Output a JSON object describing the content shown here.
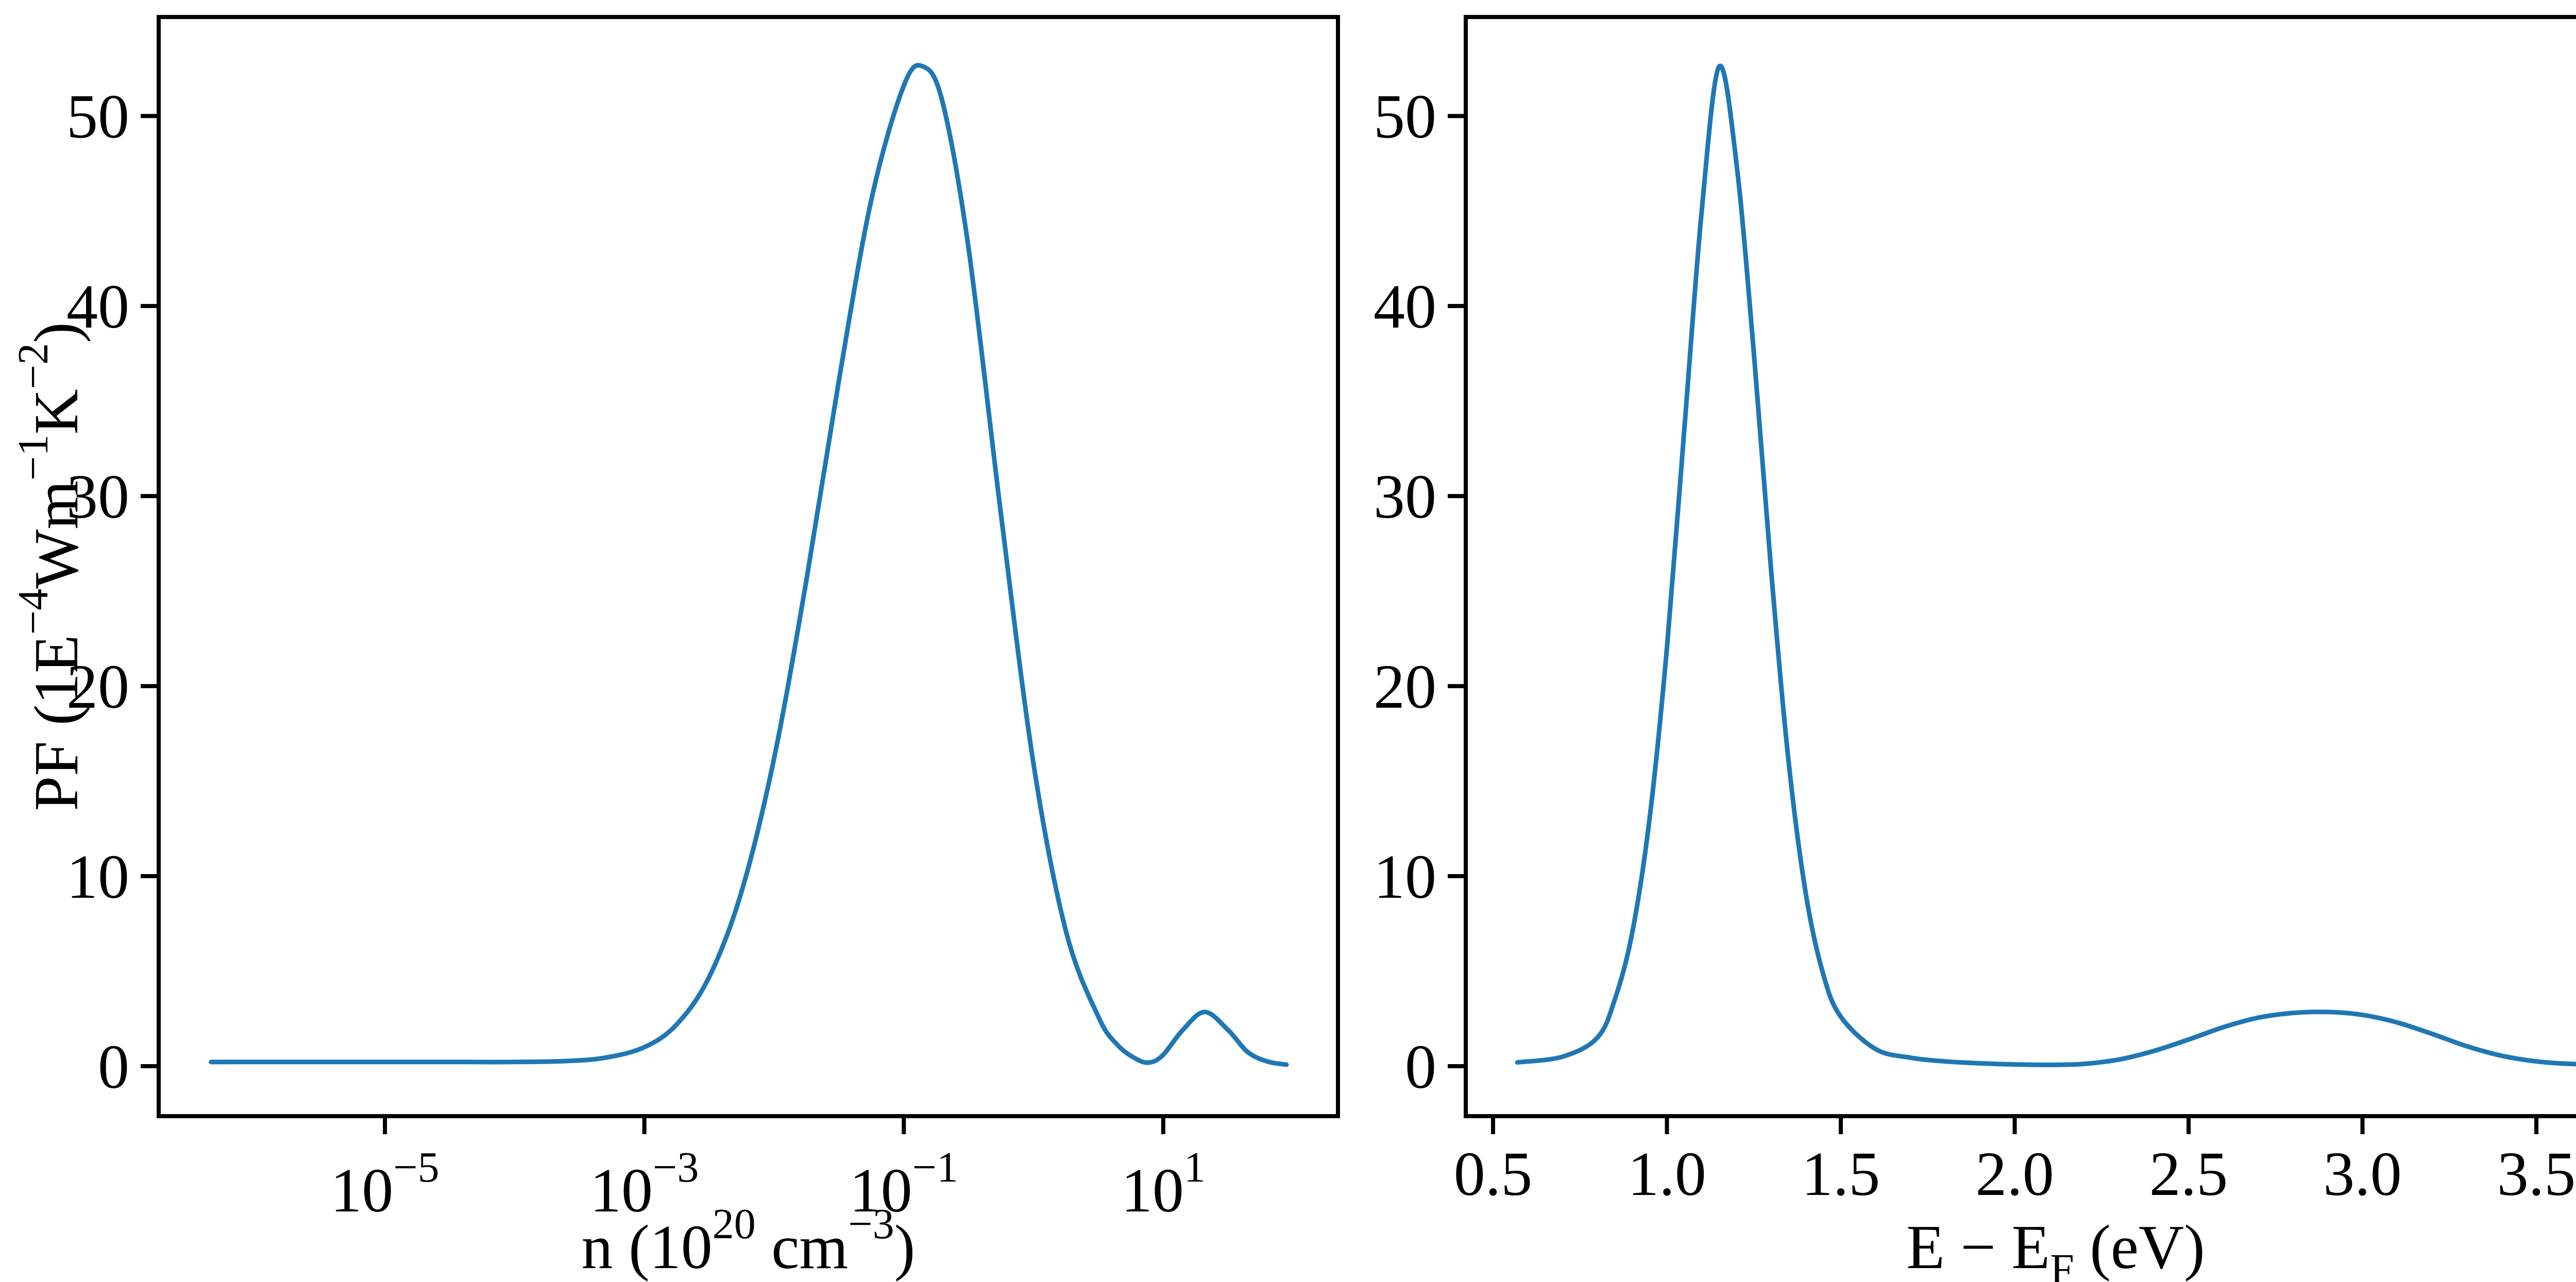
{
  "figure": {
    "background": "#ffffff",
    "axis_color": "#000000",
    "line_color": "#1f77b4"
  },
  "chart_data": [
    {
      "id": "left",
      "type": "line",
      "xscale": "log10",
      "legend": null,
      "grid": false,
      "xlabel_tokens": [
        {
          "t": "n (10"
        },
        {
          "sup": "20"
        },
        {
          "t": " cm"
        },
        {
          "sup": "−3"
        },
        {
          "t": ")"
        }
      ],
      "ylabel_tokens": [
        {
          "t": "PF (1E"
        },
        {
          "sup": "−4"
        },
        {
          "t": "Wm"
        },
        {
          "sup": "−1"
        },
        {
          "t": "K"
        },
        {
          "sup": "−2"
        },
        {
          "t": ")"
        }
      ],
      "xlim_log10": [
        -6.744,
        2.347
      ],
      "ylim": [
        -2.63,
        55.21
      ],
      "xticks": [
        {
          "log10": -5,
          "base": "10",
          "exp": "−5"
        },
        {
          "log10": -3,
          "base": "10",
          "exp": "−3"
        },
        {
          "log10": -1,
          "base": "10",
          "exp": "−1"
        },
        {
          "log10": 1,
          "base": "10",
          "exp": "1"
        }
      ],
      "yticks": [
        {
          "v": 0,
          "label": "0"
        },
        {
          "v": 10,
          "label": "10"
        },
        {
          "v": 20,
          "label": "20"
        },
        {
          "v": 30,
          "label": "30"
        },
        {
          "v": 40,
          "label": "40"
        },
        {
          "v": 50,
          "label": "50"
        }
      ],
      "x_log10": [
        -6.34,
        -6.0,
        -5.6,
        -5.2,
        -4.8,
        -4.4,
        -4.0,
        -3.6,
        -3.3,
        -3.0,
        -2.75,
        -2.5,
        -2.25,
        -2.0,
        -1.75,
        -1.5,
        -1.25,
        -1.0,
        -0.85,
        -0.7,
        -0.5,
        -0.25,
        0.0,
        0.25,
        0.5,
        0.65,
        0.8,
        0.9,
        1.0,
        1.15,
        1.32,
        1.5,
        1.65,
        1.8,
        1.95
      ],
      "y": [
        0.22,
        0.22,
        0.22,
        0.22,
        0.22,
        0.22,
        0.22,
        0.27,
        0.45,
        1.0,
        2.2,
        4.7,
        9.2,
        16.2,
        25.6,
        36.1,
        45.6,
        51.6,
        52.6,
        50.7,
        43.0,
        29.0,
        15.9,
        7.1,
        2.6,
        1.1,
        0.35,
        0.2,
        0.6,
        1.9,
        2.85,
        1.9,
        0.75,
        0.25,
        0.08
      ],
      "peak": {
        "x": 0.14,
        "y": 52.6
      },
      "secondary_peak": {
        "x": 21,
        "y": 2.85
      }
    },
    {
      "id": "right",
      "type": "line",
      "xscale": "linear",
      "legend": null,
      "grid": false,
      "xlabel_tokens": [
        {
          "t": "E − E"
        },
        {
          "sub": "F"
        },
        {
          "t": " (eV)"
        }
      ],
      "ylabel_tokens": [],
      "xlim": [
        0.4215,
        3.814
      ],
      "ylim": [
        -2.63,
        55.21
      ],
      "xticks": [
        {
          "v": 0.5,
          "label": "0.5"
        },
        {
          "v": 1.0,
          "label": "1.0"
        },
        {
          "v": 1.5,
          "label": "1.5"
        },
        {
          "v": 2.0,
          "label": "2.0"
        },
        {
          "v": 2.5,
          "label": "2.5"
        },
        {
          "v": 3.0,
          "label": "3.0"
        },
        {
          "v": 3.5,
          "label": "3.5"
        }
      ],
      "yticks": [
        {
          "v": 0,
          "label": "0"
        },
        {
          "v": 10,
          "label": "10"
        },
        {
          "v": 20,
          "label": "20"
        },
        {
          "v": 30,
          "label": "30"
        },
        {
          "v": 40,
          "label": "40"
        },
        {
          "v": 50,
          "label": "50"
        }
      ],
      "x": [
        0.57,
        0.7,
        0.8,
        0.85,
        0.9,
        0.95,
        1.0,
        1.05,
        1.1,
        1.15,
        1.2,
        1.25,
        1.3,
        1.35,
        1.4,
        1.45,
        1.5,
        1.6,
        1.7,
        1.8,
        1.9,
        2.0,
        2.1,
        2.2,
        2.3,
        2.4,
        2.5,
        2.6,
        2.7,
        2.8,
        2.9,
        3.0,
        3.1,
        3.2,
        3.3,
        3.4,
        3.5,
        3.6,
        3.72
      ],
      "y": [
        0.2,
        0.5,
        1.5,
        3.5,
        7.0,
        13.0,
        22.0,
        33.5,
        45.0,
        52.6,
        47.5,
        37.5,
        26.0,
        16.0,
        9.0,
        4.8,
        2.6,
        0.9,
        0.45,
        0.25,
        0.15,
        0.09,
        0.07,
        0.12,
        0.35,
        0.8,
        1.4,
        2.05,
        2.55,
        2.8,
        2.85,
        2.7,
        2.3,
        1.7,
        1.05,
        0.55,
        0.25,
        0.12,
        0.08
      ],
      "peak": {
        "x": 1.15,
        "y": 52.6
      },
      "secondary_peak": {
        "x": 2.9,
        "y": 2.85
      }
    }
  ]
}
